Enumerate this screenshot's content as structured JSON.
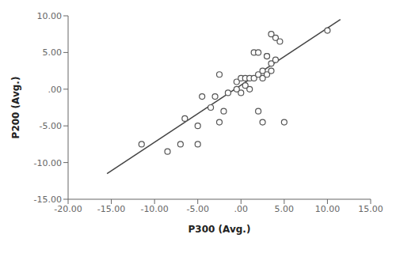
{
  "chart_data": {
    "type": "scatter",
    "xlabel": "P300 (Avg.)",
    "ylabel": "P200 (Avg.)",
    "series": [
      {
        "type": "line",
        "color": "#444444",
        "line_style": "solid",
        "x": [
          -15.5,
          11.5
        ],
        "values": [
          -11.5,
          9.5
        ]
      },
      {
        "type": "scatter",
        "color": "#555555",
        "marker": "circle",
        "x": [
          -11.5,
          -8.5,
          -7.0,
          -6.5,
          -5.0,
          -5.0,
          -4.5,
          -3.5,
          -3.0,
          -2.5,
          -2.5,
          -2.0,
          -1.5,
          -0.5,
          0.0,
          0.0,
          0.5,
          0.5,
          1.0,
          1.0,
          1.5,
          1.5,
          2.0,
          2.0,
          2.5,
          2.5,
          3.0,
          3.0,
          3.0,
          3.5,
          3.5,
          3.5,
          4.0,
          4.0,
          4.5,
          5.0,
          2.0,
          2.5,
          -0.5,
          10.0
        ],
        "values": [
          -7.5,
          -8.5,
          -7.5,
          -4.0,
          -5.0,
          -7.5,
          -1.0,
          -2.5,
          -1.0,
          -4.5,
          2.0,
          -3.0,
          -0.5,
          1.0,
          1.5,
          -0.5,
          1.5,
          0.5,
          1.5,
          0.0,
          5.0,
          1.5,
          5.0,
          2.0,
          1.5,
          2.5,
          4.5,
          4.5,
          2.0,
          2.5,
          7.5,
          3.5,
          7.0,
          4.0,
          6.5,
          -4.5,
          -3.0,
          -4.5,
          0.0,
          8.0
        ]
      }
    ],
    "xlim": [
      -20.0,
      15.0
    ],
    "ylim": [
      -15.0,
      10.0
    ],
    "xticks": [
      {
        "value": -20.0,
        "label": "-20.00"
      },
      {
        "value": -15.0,
        "label": "-15.00"
      },
      {
        "value": -10.0,
        "label": "-10.00"
      },
      {
        "value": -5.0,
        "label": "-5.00"
      },
      {
        "value": 0.0,
        "label": ".00"
      },
      {
        "value": 5.0,
        "label": "5.00"
      },
      {
        "value": 10.0,
        "label": "10.00"
      },
      {
        "value": 15.0,
        "label": "15.00"
      }
    ],
    "yticks": [
      {
        "value": -15.0,
        "label": "-15.00"
      },
      {
        "value": -10.0,
        "label": "-10.00"
      },
      {
        "value": -5.0,
        "label": "-5.00"
      },
      {
        "value": 0.0,
        "label": ".00"
      },
      {
        "value": 5.0,
        "label": "5.00"
      },
      {
        "value": 10.0,
        "label": "10.00"
      }
    ],
    "grid": false
  }
}
